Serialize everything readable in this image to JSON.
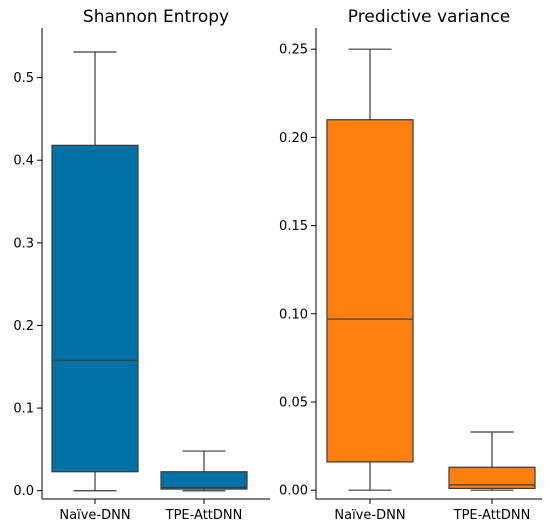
{
  "chart_data": [
    {
      "type": "box",
      "title": "Shannon Entropy",
      "xlabel": "",
      "ylabel": "",
      "categories": [
        "Naïve-DNN",
        "TPE-AttDNN"
      ],
      "ylim": [
        -0.01,
        0.56
      ],
      "yticks": [
        0.0,
        0.1,
        0.2,
        0.3,
        0.4,
        0.5
      ],
      "ytick_labels": [
        "0.0",
        "0.1",
        "0.2",
        "0.3",
        "0.4",
        "0.5"
      ],
      "color": "#0072a6",
      "boxes": [
        {
          "min": 0.0,
          "q1": 0.023,
          "median": 0.158,
          "q3": 0.418,
          "max": 0.531
        },
        {
          "min": 0.0,
          "q1": 0.002,
          "median": 0.004,
          "q3": 0.023,
          "max": 0.048
        }
      ]
    },
    {
      "type": "box",
      "title": "Predictive variance",
      "xlabel": "",
      "ylabel": "",
      "categories": [
        "Naïve-DNN",
        "TPE-AttDNN"
      ],
      "ylim": [
        -0.005,
        0.262
      ],
      "yticks": [
        0.0,
        0.05,
        0.1,
        0.15,
        0.2,
        0.25
      ],
      "ytick_labels": [
        "0.00",
        "0.05",
        "0.10",
        "0.15",
        "0.20",
        "0.25"
      ],
      "color": "#ff7f0e",
      "boxes": [
        {
          "min": 0.0,
          "q1": 0.016,
          "median": 0.097,
          "q3": 0.21,
          "max": 0.25
        },
        {
          "min": 0.0,
          "q1": 0.001,
          "median": 0.003,
          "q3": 0.013,
          "max": 0.033
        }
      ]
    }
  ]
}
